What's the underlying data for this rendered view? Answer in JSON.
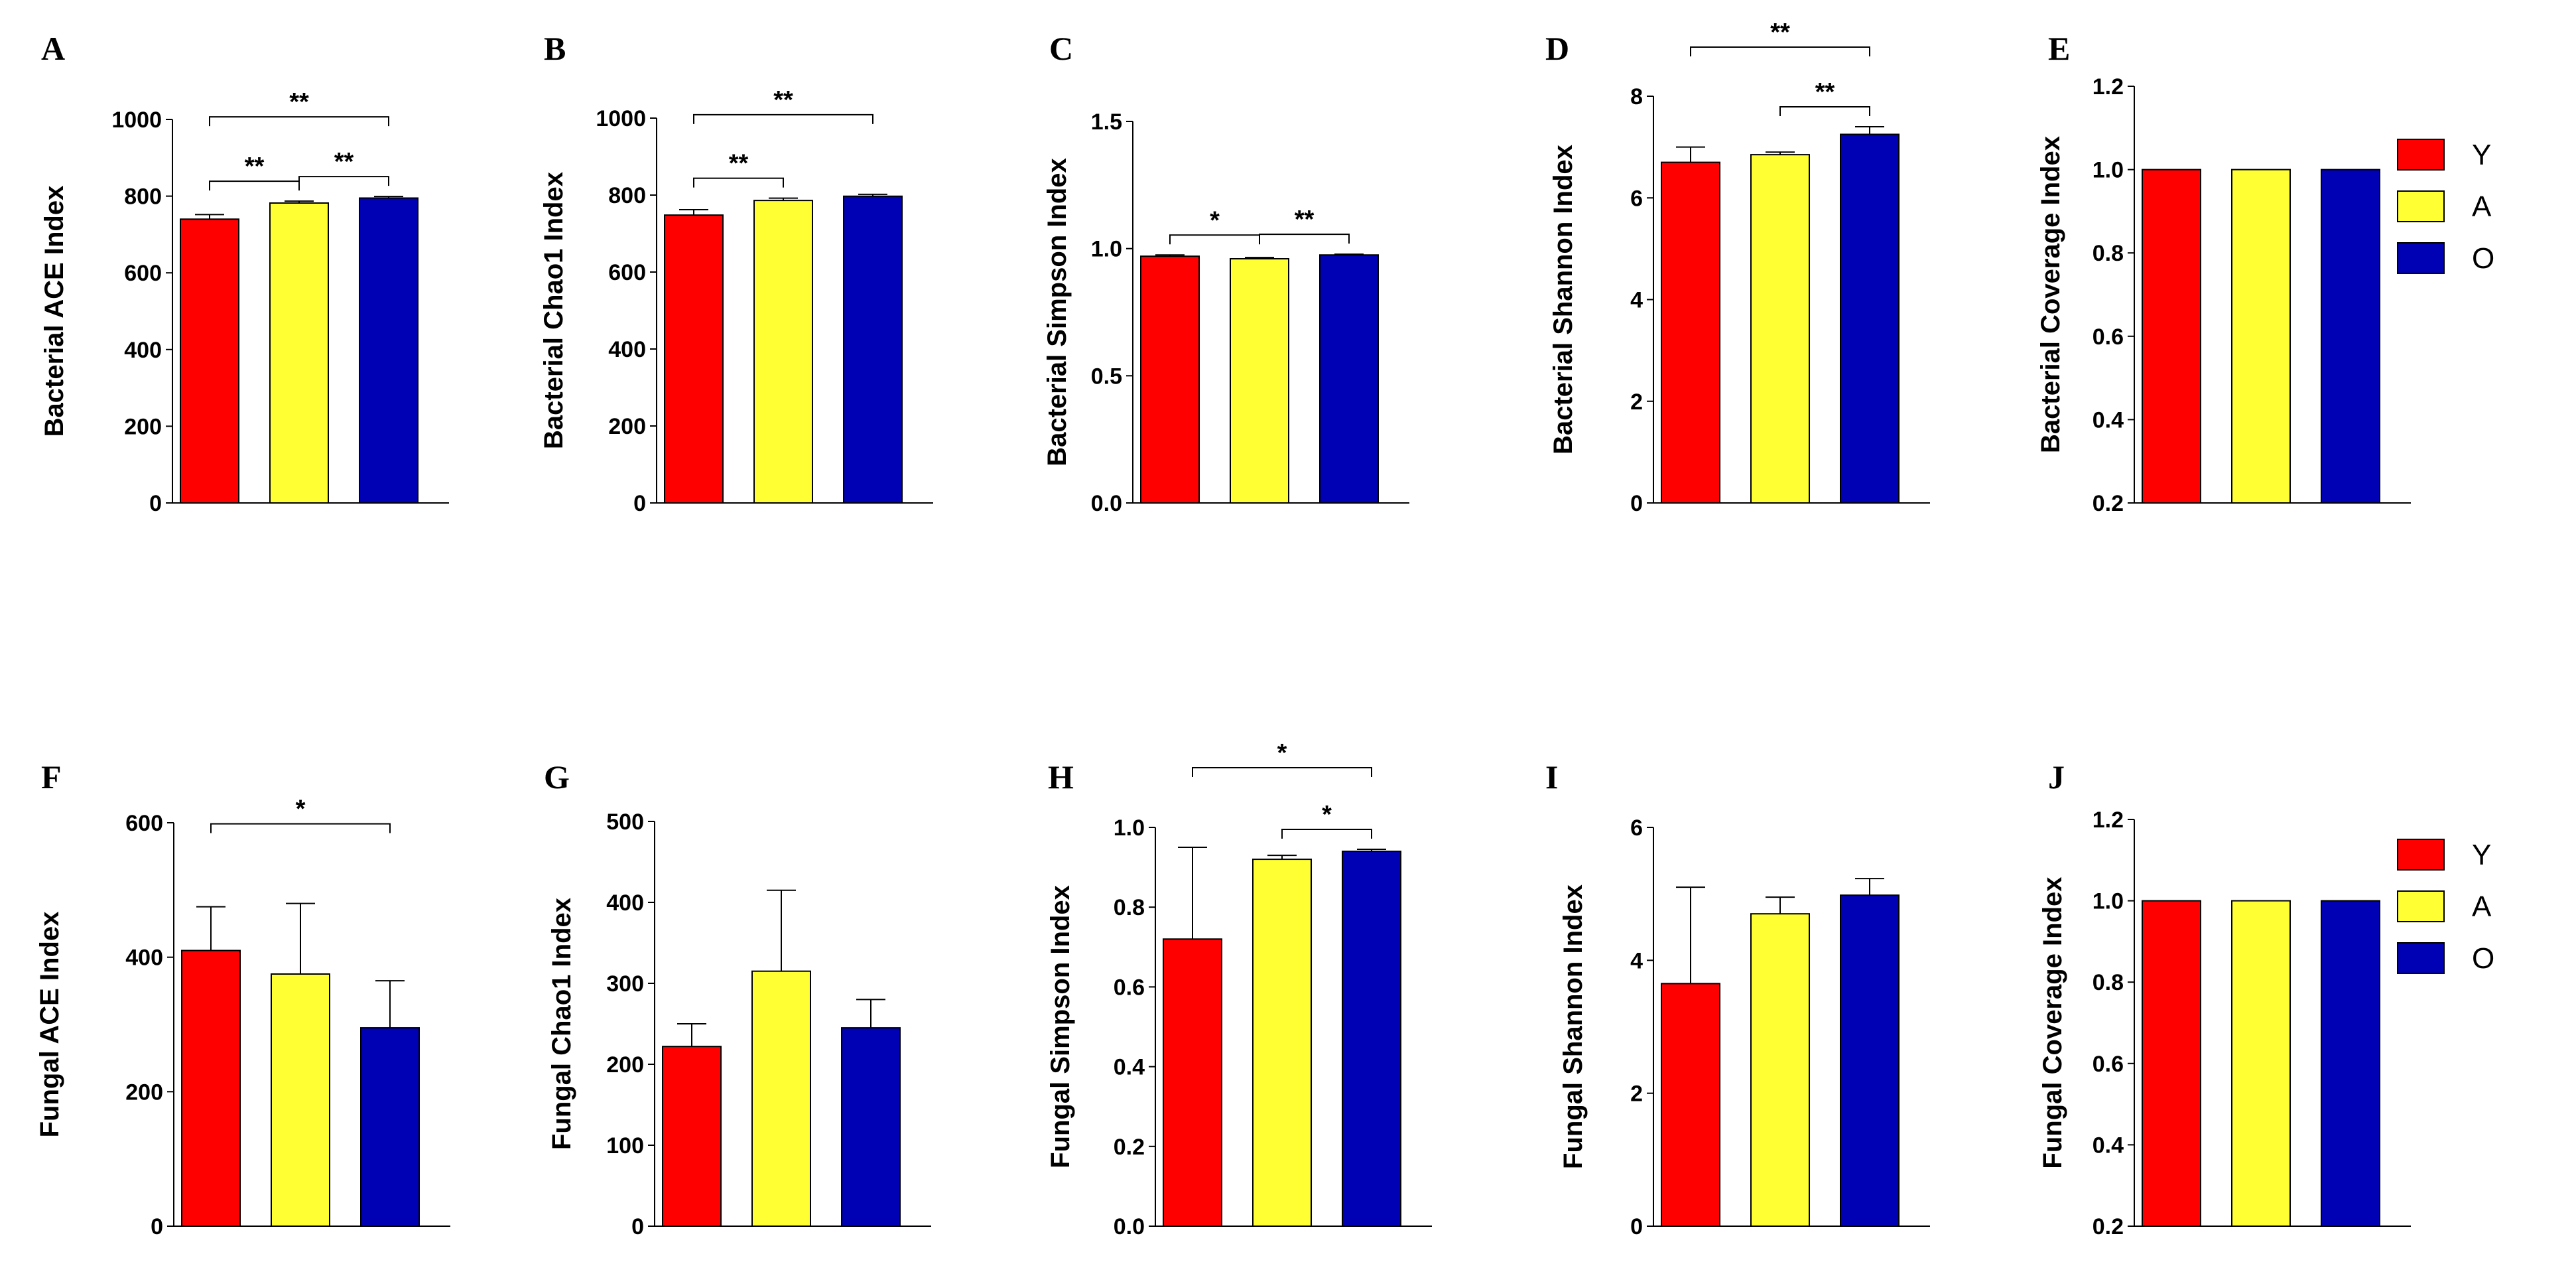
{
  "legend": [
    {
      "label": "Y",
      "color": "#ff0000"
    },
    {
      "label": "A",
      "color": "#ffff33"
    },
    {
      "label": "O",
      "color": "#0000b4"
    }
  ],
  "chart_data": [
    {
      "panel": "A",
      "type": "bar",
      "ylabel": "Bacterial ACE Index",
      "categories": [
        "Y",
        "A",
        "O"
      ],
      "values": [
        740,
        782,
        795
      ],
      "errors": [
        12,
        5,
        4
      ],
      "ylim": [
        0,
        1000
      ],
      "yticks": [
        "0",
        "200",
        "400",
        "600",
        "800",
        "1000"
      ],
      "significance": [
        {
          "from": 0,
          "to": 1,
          "label": "**"
        },
        {
          "from": 1,
          "to": 2,
          "label": "**"
        },
        {
          "from": 0,
          "to": 2,
          "label": "**"
        }
      ]
    },
    {
      "panel": "B",
      "type": "bar",
      "ylabel": "Bacterial Chao1 Index",
      "categories": [
        "Y",
        "A",
        "O"
      ],
      "values": [
        748,
        786,
        797
      ],
      "errors": [
        14,
        6,
        5
      ],
      "ylim": [
        0,
        1000
      ],
      "yticks": [
        "0",
        "200",
        "400",
        "600",
        "800",
        "1000"
      ],
      "significance": [
        {
          "from": 0,
          "to": 1,
          "label": "**"
        },
        {
          "from": 0,
          "to": 2,
          "label": "**"
        }
      ]
    },
    {
      "panel": "C",
      "type": "bar",
      "ylabel": "Bacterial Simpson Index",
      "categories": [
        "Y",
        "A",
        "O"
      ],
      "values": [
        0.97,
        0.96,
        0.975
      ],
      "errors": [
        0.005,
        0.005,
        0.003
      ],
      "ylim": [
        0,
        1.5
      ],
      "yticks": [
        "0.0",
        "0.5",
        "1.0",
        "1.5"
      ],
      "significance": [
        {
          "from": 0,
          "to": 1,
          "label": "*"
        },
        {
          "from": 1,
          "to": 2,
          "label": "**"
        }
      ]
    },
    {
      "panel": "D",
      "type": "bar",
      "ylabel": "Bacterial Shannon Index",
      "categories": [
        "Y",
        "A",
        "O"
      ],
      "values": [
        6.7,
        6.85,
        7.25
      ],
      "errors": [
        0.3,
        0.05,
        0.15
      ],
      "ylim": [
        0,
        8
      ],
      "yticks": [
        "0",
        "2",
        "4",
        "6",
        "8"
      ],
      "significance": [
        {
          "from": 1,
          "to": 2,
          "label": "**"
        },
        {
          "from": 0,
          "to": 2,
          "label": "**"
        }
      ]
    },
    {
      "panel": "E",
      "type": "bar",
      "ylabel": "Bacterial Coverage Index",
      "categories": [
        "Y",
        "A",
        "O"
      ],
      "values": [
        1.0,
        1.0,
        1.0
      ],
      "errors": [
        0,
        0,
        0
      ],
      "ylim": [
        0.2,
        1.2
      ],
      "yticks": [
        "0.2",
        "0.4",
        "0.6",
        "0.8",
        "1.0",
        "1.2"
      ],
      "significance": []
    },
    {
      "panel": "F",
      "type": "bar",
      "ylabel": "Fungal ACE Index",
      "categories": [
        "Y",
        "A",
        "O"
      ],
      "values": [
        410,
        375,
        295
      ],
      "errors": [
        65,
        105,
        70
      ],
      "ylim": [
        0,
        600
      ],
      "yticks": [
        "0",
        "200",
        "400",
        "600"
      ],
      "significance": [
        {
          "from": 0,
          "to": 2,
          "label": "*"
        }
      ]
    },
    {
      "panel": "G",
      "type": "bar",
      "ylabel": "Fungal Chao1 Index",
      "categories": [
        "Y",
        "A",
        "O"
      ],
      "values": [
        222,
        315,
        245
      ],
      "errors": [
        28,
        100,
        35
      ],
      "ylim": [
        0,
        500
      ],
      "yticks": [
        "0",
        "100",
        "200",
        "300",
        "400",
        "500"
      ],
      "significance": []
    },
    {
      "panel": "H",
      "type": "bar",
      "ylabel": "Fungal Simpson Index",
      "categories": [
        "Y",
        "A",
        "O"
      ],
      "values": [
        0.72,
        0.92,
        0.94
      ],
      "errors": [
        0.23,
        0.01,
        0.005
      ],
      "ylim": [
        0,
        1.0
      ],
      "yticks": [
        "0.0",
        "0.2",
        "0.4",
        "0.6",
        "0.8",
        "1.0"
      ],
      "significance": [
        {
          "from": 0,
          "to": 2,
          "label": "*"
        },
        {
          "from": 1,
          "to": 2,
          "label": "*"
        }
      ]
    },
    {
      "panel": "I",
      "type": "bar",
      "ylabel": "Fungal Shannon Index",
      "categories": [
        "Y",
        "A",
        "O"
      ],
      "values": [
        3.65,
        4.7,
        4.98
      ],
      "errors": [
        1.45,
        0.25,
        0.25
      ],
      "ylim": [
        0,
        6
      ],
      "yticks": [
        "0",
        "2",
        "4",
        "6"
      ],
      "significance": []
    },
    {
      "panel": "J",
      "type": "bar",
      "ylabel": "Fungal Coverage Index",
      "categories": [
        "Y",
        "A",
        "O"
      ],
      "values": [
        1.0,
        1.0,
        1.0
      ],
      "errors": [
        0,
        0,
        0
      ],
      "ylim": [
        0.2,
        1.2
      ],
      "yticks": [
        "0.2",
        "0.4",
        "0.6",
        "0.8",
        "1.0",
        "1.2"
      ],
      "significance": []
    }
  ]
}
